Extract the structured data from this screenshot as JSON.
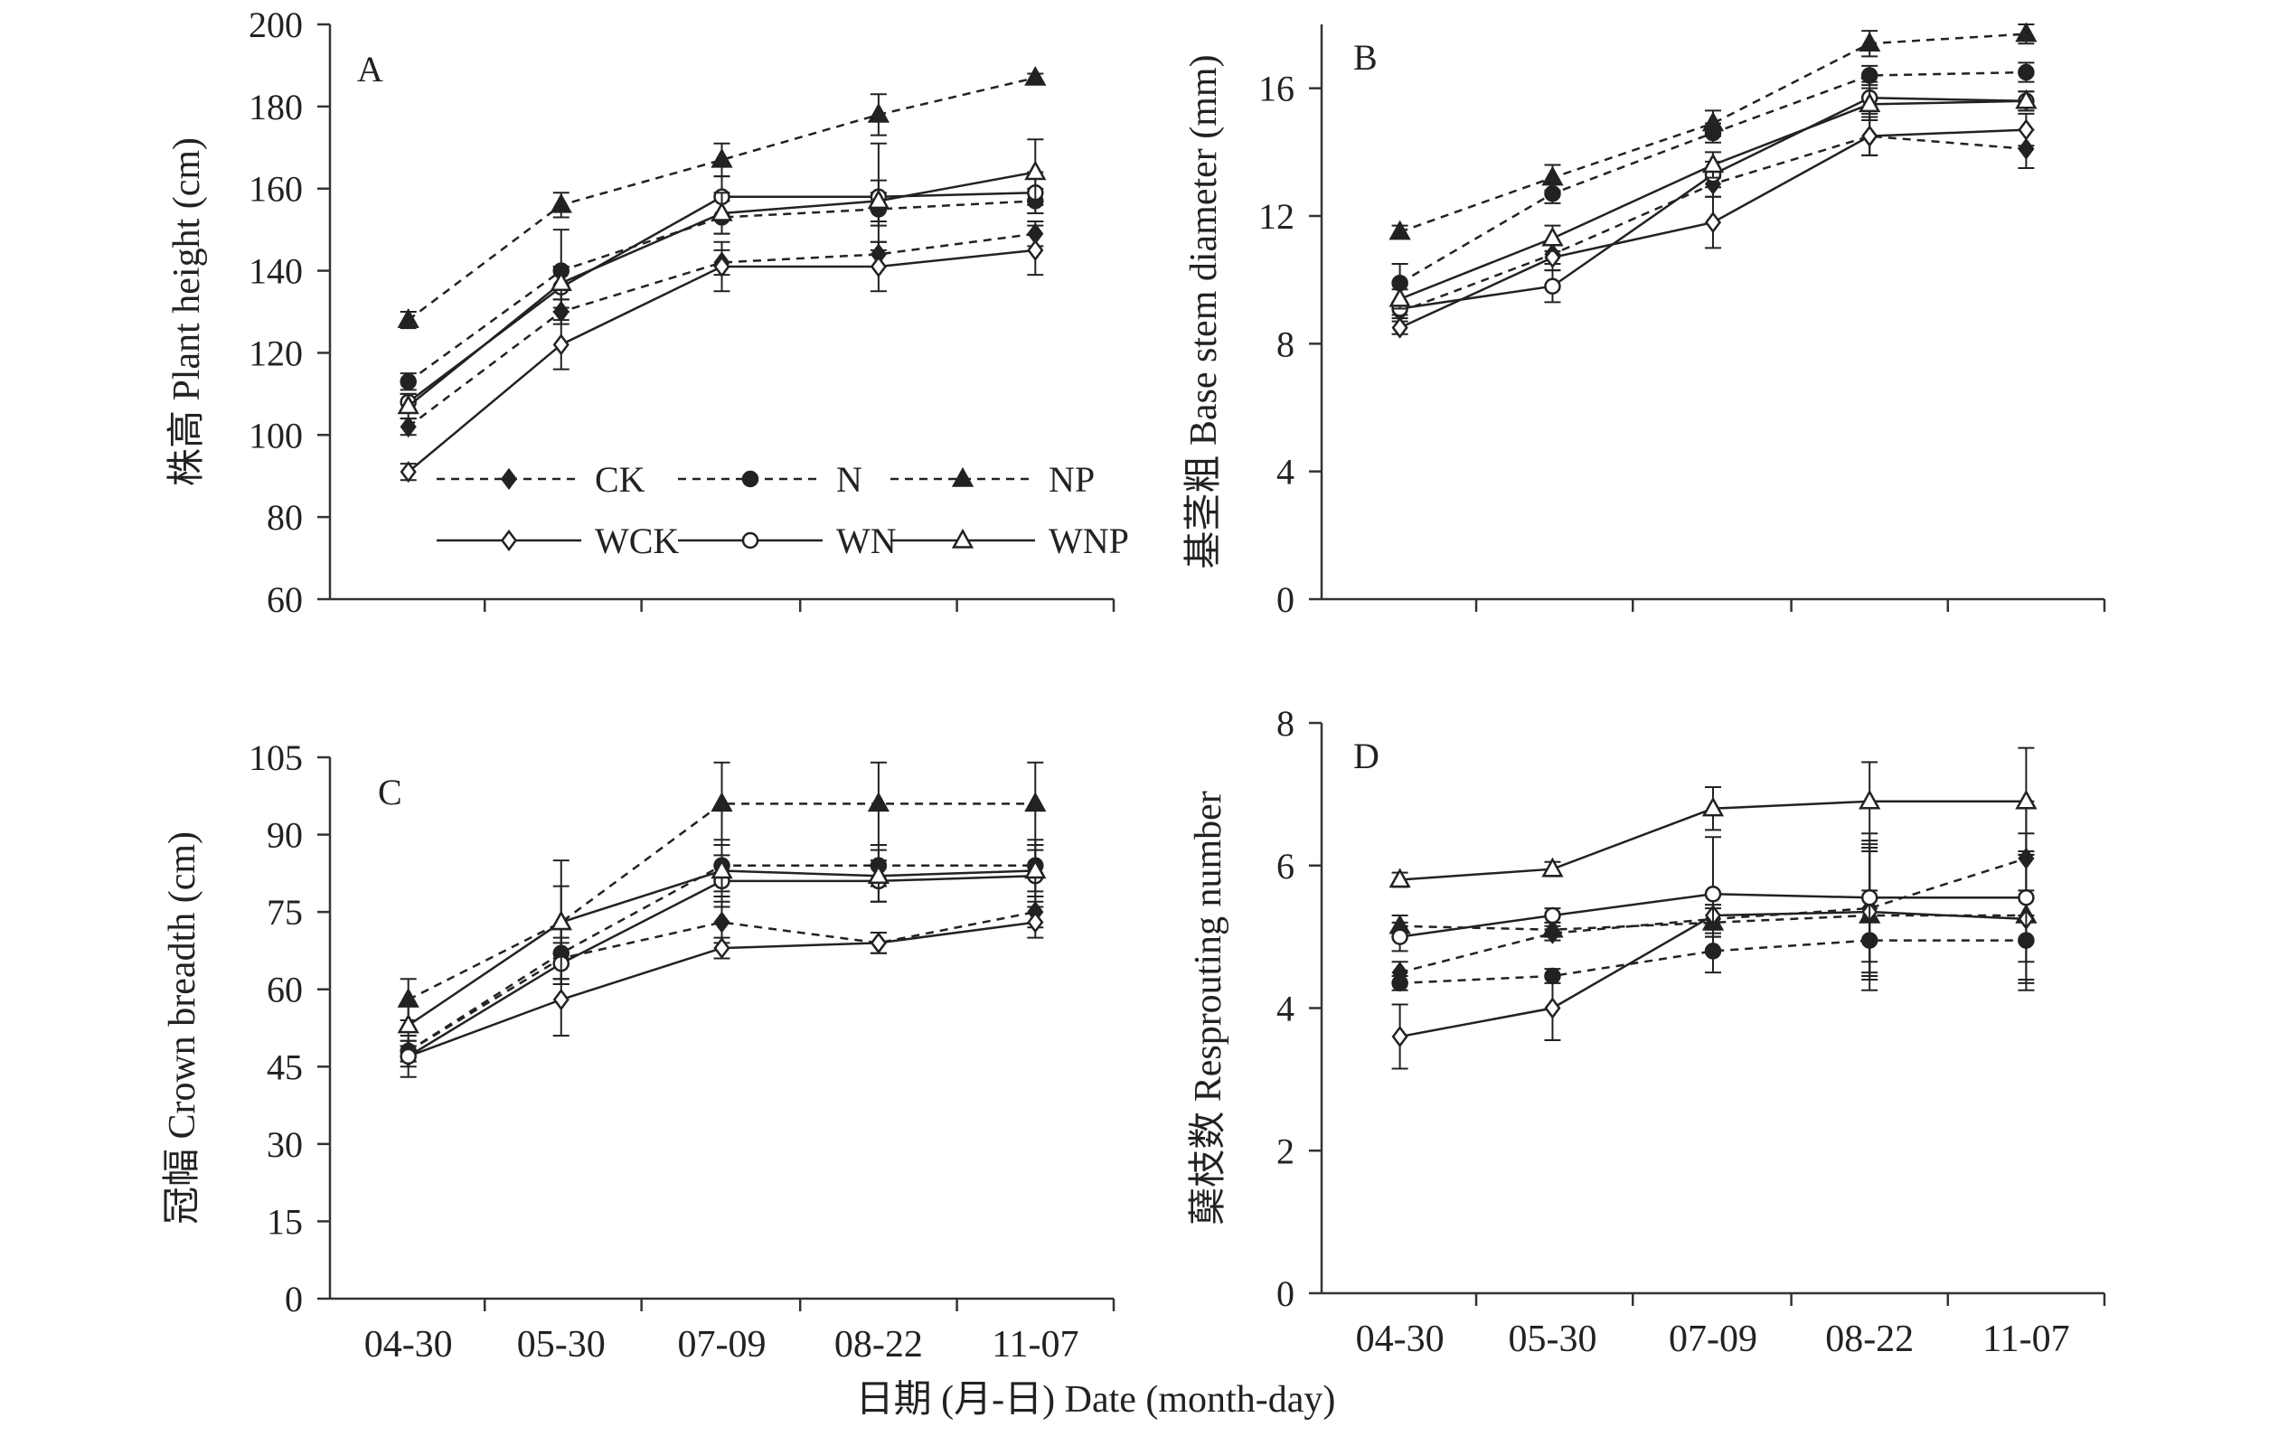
{
  "figure": {
    "xlabel": "日期 (月-日) Date (month-day)"
  },
  "legend": [
    {
      "name": "CK",
      "dashed": true,
      "marker": "diamond",
      "filled": true
    },
    {
      "name": "N",
      "dashed": true,
      "marker": "circle",
      "filled": true
    },
    {
      "name": "NP",
      "dashed": true,
      "marker": "triangle",
      "filled": true
    },
    {
      "name": "WCK",
      "dashed": false,
      "marker": "diamond",
      "filled": false
    },
    {
      "name": "WN",
      "dashed": false,
      "marker": "circle",
      "filled": false
    },
    {
      "name": "WNP",
      "dashed": false,
      "marker": "triangle",
      "filled": false
    }
  ],
  "chart_data": [
    {
      "type": "line",
      "panel": "A",
      "ylabel": "株高 Plant height (cm)",
      "categories": [
        "04-30",
        "05-30",
        "07-09",
        "08-22",
        "11-07"
      ],
      "ylim": [
        60,
        200
      ],
      "yticks": [
        60,
        80,
        100,
        120,
        140,
        160,
        180,
        200
      ],
      "grid": false,
      "legend_position": "bottom-center",
      "series": [
        {
          "name": "CK",
          "values": [
            102,
            130,
            142,
            144,
            149
          ],
          "errors": [
            2,
            3,
            3,
            3,
            3
          ]
        },
        {
          "name": "N",
          "values": [
            113,
            140,
            153,
            155,
            157
          ],
          "errors": [
            2,
            10,
            4,
            4,
            3
          ]
        },
        {
          "name": "NP",
          "values": [
            128,
            156,
            167,
            178,
            187
          ],
          "errors": [
            2,
            3,
            4,
            5,
            1
          ]
        },
        {
          "name": "WCK",
          "values": [
            91,
            122,
            141,
            141,
            145
          ],
          "errors": [
            2,
            6,
            6,
            6,
            6
          ]
        },
        {
          "name": "WN",
          "values": [
            108,
            136,
            158,
            158,
            159
          ],
          "errors": [
            2,
            5,
            5,
            13,
            5
          ]
        },
        {
          "name": "WNP",
          "values": [
            107,
            137,
            154,
            157,
            164
          ],
          "errors": [
            3,
            4,
            5,
            5,
            8
          ]
        }
      ]
    },
    {
      "type": "line",
      "panel": "B",
      "ylabel": "基茎粗 Base stem diameter (mm)",
      "categories": [
        "04-30",
        "05-30",
        "07-09",
        "08-22",
        "11-07"
      ],
      "ylim": [
        0,
        18
      ],
      "yticks": [
        0,
        4,
        8,
        12,
        16
      ],
      "grid": false,
      "series": [
        {
          "name": "CK",
          "values": [
            9.0,
            10.8,
            13.0,
            14.5,
            14.1
          ],
          "errors": [
            0.2,
            0.3,
            0.4,
            0.6,
            0.6
          ]
        },
        {
          "name": "N",
          "values": [
            9.9,
            12.7,
            14.6,
            16.4,
            16.5
          ],
          "errors": [
            0.6,
            0.3,
            0.3,
            0.3,
            0.3
          ]
        },
        {
          "name": "NP",
          "values": [
            11.5,
            13.2,
            14.9,
            17.4,
            17.7
          ],
          "errors": [
            0.2,
            0.4,
            0.4,
            0.4,
            0.3
          ]
        },
        {
          "name": "WCK",
          "values": [
            8.5,
            10.7,
            11.8,
            14.5,
            14.7
          ],
          "errors": [
            0.2,
            0.4,
            0.8,
            0.6,
            0.5
          ]
        },
        {
          "name": "WN",
          "values": [
            9.1,
            9.8,
            13.3,
            15.7,
            15.6
          ],
          "errors": [
            0.2,
            0.5,
            0.4,
            0.5,
            0.3
          ]
        },
        {
          "name": "WNP",
          "values": [
            9.4,
            11.3,
            13.6,
            15.5,
            15.6
          ],
          "errors": [
            0.3,
            0.4,
            0.4,
            0.5,
            0.3
          ]
        }
      ]
    },
    {
      "type": "line",
      "panel": "C",
      "ylabel": "冠幅 Crown breadth (cm)",
      "categories": [
        "04-30",
        "05-30",
        "07-09",
        "08-22",
        "11-07"
      ],
      "ylim": [
        0,
        105
      ],
      "yticks": [
        0,
        15,
        30,
        45,
        60,
        75,
        90,
        105
      ],
      "grid": false,
      "series": [
        {
          "name": "CK",
          "values": [
            48,
            66,
            73,
            69,
            75
          ],
          "errors": [
            2,
            4,
            4,
            2,
            3
          ]
        },
        {
          "name": "N",
          "values": [
            48,
            67,
            84,
            84,
            84
          ],
          "errors": [
            2,
            5,
            5,
            4,
            5
          ]
        },
        {
          "name": "NP",
          "values": [
            58,
            73,
            96,
            96,
            96
          ],
          "errors": [
            4,
            7,
            8,
            8,
            8
          ]
        },
        {
          "name": "WCK",
          "values": [
            47,
            58,
            68,
            69,
            73
          ],
          "errors": [
            4,
            7,
            2,
            2,
            3
          ]
        },
        {
          "name": "WN",
          "values": [
            47,
            65,
            81,
            81,
            82
          ],
          "errors": [
            2,
            4,
            5,
            4,
            5
          ]
        },
        {
          "name": "WNP",
          "values": [
            53,
            73,
            83,
            82,
            83
          ],
          "errors": [
            4,
            12,
            5,
            5,
            5
          ]
        }
      ]
    },
    {
      "type": "line",
      "panel": "D",
      "ylabel": "蘖枝数 Resprouting number",
      "categories": [
        "04-30",
        "05-30",
        "07-09",
        "08-22",
        "11-07"
      ],
      "ylim": [
        0,
        8
      ],
      "yticks": [
        0,
        2,
        4,
        6,
        8
      ],
      "grid": false,
      "series": [
        {
          "name": "CK",
          "values": [
            4.5,
            5.05,
            5.25,
            5.4,
            6.1
          ],
          "errors": [
            0.15,
            0.1,
            0.2,
            0.9,
            0.8
          ]
        },
        {
          "name": "N",
          "values": [
            4.35,
            4.45,
            4.8,
            4.95,
            4.95
          ],
          "errors": [
            0.1,
            0.1,
            0.3,
            0.7,
            0.7
          ]
        },
        {
          "name": "NP",
          "values": [
            5.15,
            5.1,
            5.2,
            5.3,
            5.3
          ],
          "errors": [
            0.15,
            0.1,
            0.2,
            0.9,
            0.9
          ]
        },
        {
          "name": "WCK",
          "values": [
            3.6,
            4.0,
            5.3,
            5.35,
            5.25
          ],
          "errors": [
            0.45,
            0.45,
            0.3,
            0.9,
            0.9
          ]
        },
        {
          "name": "WN",
          "values": [
            5.0,
            5.3,
            5.6,
            5.55,
            5.55
          ],
          "errors": [
            0.2,
            0.1,
            0.8,
            0.9,
            0.9
          ]
        },
        {
          "name": "WNP",
          "values": [
            5.8,
            5.95,
            6.8,
            6.9,
            6.9
          ],
          "errors": [
            0.1,
            0.1,
            0.3,
            0.55,
            0.75
          ]
        }
      ]
    }
  ]
}
